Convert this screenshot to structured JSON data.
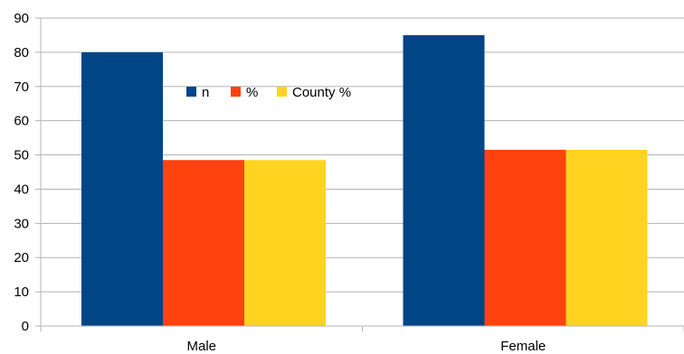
{
  "chart_data": {
    "type": "bar",
    "categories": [
      "Male",
      "Female"
    ],
    "series": [
      {
        "name": "n",
        "values": [
          80,
          85
        ],
        "color": "#004586"
      },
      {
        "name": "%",
        "values": [
          48.5,
          51.5
        ],
        "color": "#ff420e"
      },
      {
        "name": "County %",
        "values": [
          48.5,
          51.5
        ],
        "color": "#ffd320"
      }
    ],
    "yticks": [
      "0",
      "10",
      "20",
      "30",
      "40",
      "50",
      "60",
      "70",
      "80",
      "90"
    ],
    "ylim": [
      0,
      90
    ],
    "grid": true,
    "legend_position": "inside-top-left",
    "title": "",
    "xlabel": "",
    "ylabel": ""
  }
}
